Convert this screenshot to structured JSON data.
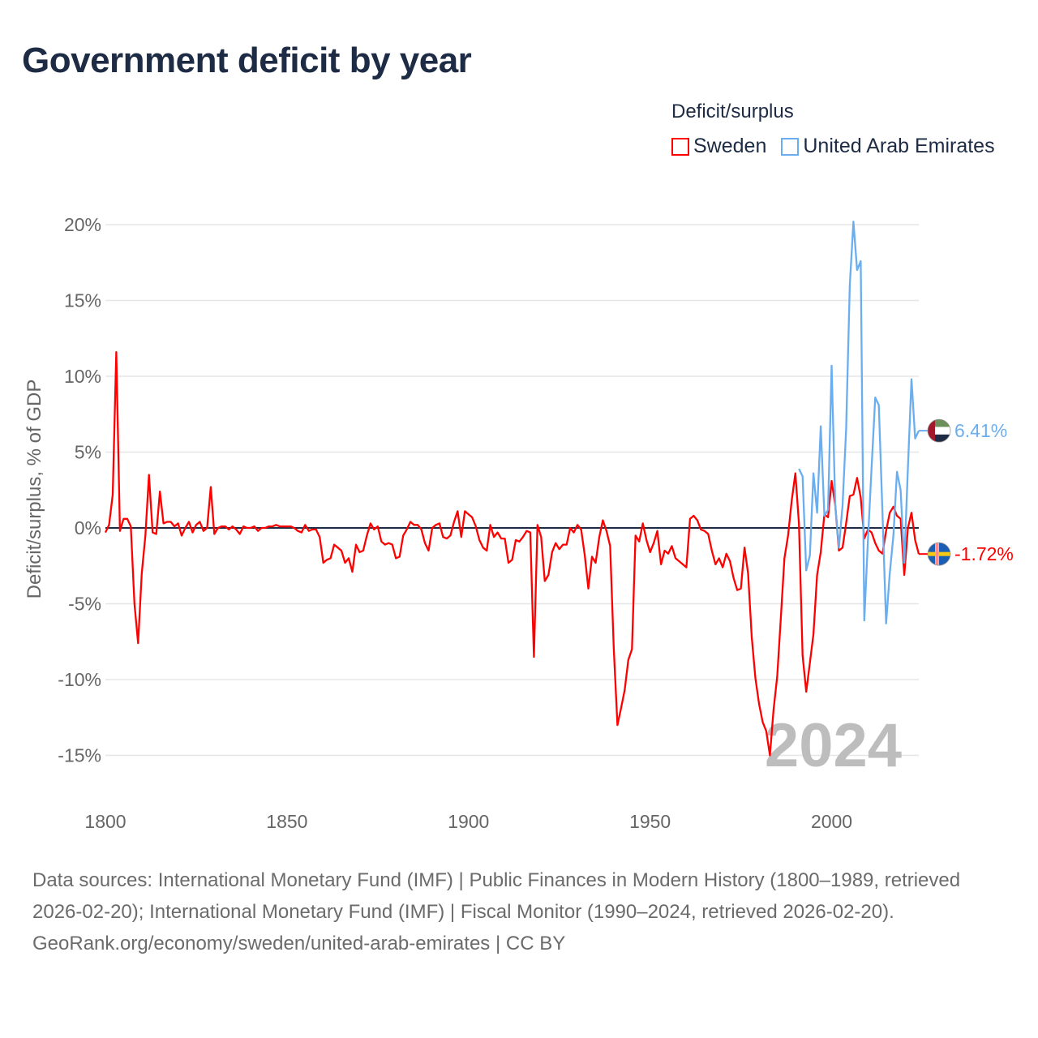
{
  "title": "Government deficit by year",
  "legend": {
    "title": "Deficit/surplus",
    "items": [
      {
        "label": "Sweden",
        "color": "#ff0000"
      },
      {
        "label": "United Arab Emirates",
        "color": "#6aaef0"
      }
    ]
  },
  "footer": {
    "sources": "Data sources: International Monetary Fund (IMF) | Public Finances in Modern History (1800–1989, retrieved 2026-02-20); International Monetary Fund (IMF) | Fiscal Monitor (1990–2024, retrieved 2026-02-20).",
    "link": "GeoRank.org/economy/sweden/united-arab-emirates",
    "license": "CC BY"
  },
  "chart_data": {
    "type": "line",
    "title": "Government deficit by year",
    "xlabel": "",
    "ylabel": "Deficit/surplus, % of GDP",
    "xlim": [
      1800,
      2024
    ],
    "ylim": [
      -15,
      20
    ],
    "grid": true,
    "legend_position": "top-right",
    "current_year_label": "2024",
    "x_ticks": [
      1800,
      1850,
      1900,
      1950,
      2000
    ],
    "x_tick_labels": [
      "1800",
      "1850",
      "1900",
      "1950",
      "2000"
    ],
    "y_ticks": [
      20,
      15,
      10,
      5,
      0,
      -5,
      -10,
      -15
    ],
    "y_tick_labels": [
      "20%",
      "15%",
      "10%",
      "5%",
      "0%",
      "-5%",
      "-10%",
      "-15%"
    ],
    "series": [
      {
        "name": "Sweden",
        "color": "#ff0000",
        "start_year": 1800,
        "end_label": "-1.72%",
        "values": [
          -0.3,
          0.2,
          2.2,
          11.6,
          -0.2,
          0.6,
          0.6,
          0.1,
          -5.0,
          -7.6,
          -3.0,
          -0.5,
          3.5,
          -0.3,
          -0.4,
          2.4,
          0.3,
          0.4,
          0.4,
          0.1,
          0.3,
          -0.5,
          0.0,
          0.4,
          -0.3,
          0.2,
          0.4,
          -0.2,
          0.0,
          2.7,
          -0.4,
          0.0,
          0.1,
          0.1,
          -0.1,
          0.1,
          -0.1,
          -0.4,
          0.1,
          0.0,
          0.0,
          0.1,
          -0.2,
          0.0,
          0.0,
          0.1,
          0.1,
          0.2,
          0.1,
          0.1,
          0.1,
          0.1,
          0.0,
          -0.2,
          -0.3,
          0.2,
          -0.2,
          -0.1,
          -0.1,
          -0.6,
          -2.3,
          -2.1,
          -2.0,
          -1.1,
          -1.3,
          -1.5,
          -2.3,
          -2.0,
          -2.9,
          -1.1,
          -1.6,
          -1.5,
          -0.5,
          0.3,
          -0.1,
          0.1,
          -0.9,
          -1.1,
          -1.0,
          -1.1,
          -2.0,
          -1.9,
          -0.5,
          -0.1,
          0.4,
          0.2,
          0.2,
          -0.1,
          -1.0,
          -1.5,
          0.0,
          0.2,
          0.3,
          -0.6,
          -0.7,
          -0.5,
          0.4,
          1.1,
          -0.6,
          1.1,
          0.9,
          0.7,
          0.1,
          -0.8,
          -1.3,
          -1.5,
          0.2,
          -0.6,
          -0.3,
          -0.7,
          -0.7,
          -2.3,
          -2.1,
          -0.8,
          -0.9,
          -0.6,
          -0.2,
          -0.3,
          -8.5,
          0.2,
          -0.6,
          -3.5,
          -3.1,
          -1.6,
          -1.0,
          -1.4,
          -1.1,
          -1.1,
          0.0,
          -0.3,
          0.2,
          -0.1,
          -1.8,
          -4.0,
          -1.9,
          -2.3,
          -0.6,
          0.5,
          -0.2,
          -1.2,
          -8.0,
          -13.0,
          -11.9,
          -10.7,
          -8.7,
          -8.0,
          -0.5,
          -0.9,
          0.3,
          -0.8,
          -1.6,
          -1.0,
          -0.2,
          -2.4,
          -1.5,
          -1.7,
          -1.2,
          -2.0,
          -2.2,
          -2.4,
          -2.6,
          0.6,
          0.8,
          0.5,
          -0.1,
          -0.2,
          -0.4,
          -1.5,
          -2.4,
          -2.0,
          -2.6,
          -1.7,
          -2.2,
          -3.3,
          -4.1,
          -4.0,
          -1.3,
          -3.0,
          -7.2,
          -9.9,
          -11.6,
          -12.8,
          -13.4,
          -15.0,
          -12.0,
          -9.8,
          -6.0,
          -2.0,
          -0.5,
          1.8,
          3.6,
          0.3,
          -8.4,
          -10.8,
          -8.9,
          -7.0,
          -3.1,
          -1.6,
          0.9,
          0.7,
          3.1,
          1.5,
          -1.5,
          -1.3,
          0.3,
          2.1,
          2.2,
          3.3,
          2.0,
          -0.7,
          -0.1,
          -0.3,
          -1.0,
          -1.5,
          -1.7,
          -0.2,
          1.0,
          1.4,
          0.8,
          0.6,
          -3.1,
          0.0,
          1.0,
          -0.8,
          -1.72
        ]
      },
      {
        "name": "United Arab Emirates",
        "color": "#6aaef0",
        "start_year": 1991,
        "end_label": "6.41%",
        "values": [
          3.9,
          3.4,
          -2.8,
          -1.8,
          3.6,
          1.0,
          6.7,
          0.8,
          1.2,
          10.7,
          1.5,
          -1.3,
          1.5,
          6.5,
          16.0,
          20.2,
          17.0,
          17.6,
          -6.1,
          -0.8,
          4.0,
          8.6,
          8.1,
          1.0,
          -6.3,
          -3.0,
          -0.5,
          3.7,
          2.5,
          -2.3,
          4.0,
          9.8,
          5.9,
          6.41
        ]
      }
    ]
  }
}
